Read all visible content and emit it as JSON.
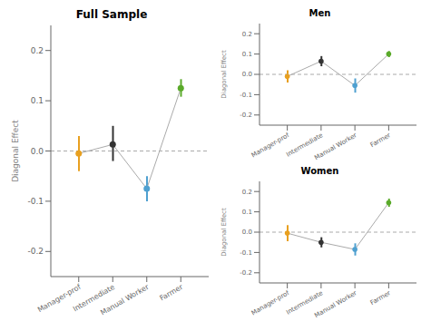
{
  "chart_data": [
    {
      "type": "line",
      "title": "Full Sample",
      "categories": [
        "Manager-prof",
        "Intermediate",
        "Manual Worker",
        "Farmer"
      ],
      "values": [
        -0.005,
        0.013,
        -0.075,
        0.125
      ],
      "ci_low": [
        -0.04,
        -0.02,
        -0.1,
        0.108
      ],
      "ci_high": [
        0.03,
        0.05,
        -0.05,
        0.143
      ],
      "colors": [
        "#E8A020",
        "#333333",
        "#4FA0D0",
        "#5AAA2A"
      ],
      "color": "#aaaaaa",
      "marker": "circle",
      "ylabel": "Diagonal Effect",
      "ylim": [
        -0.25,
        0.25
      ],
      "yticks": [
        -0.2,
        -0.1,
        {
          "value": 0,
          "label": "0.0"
        },
        0.1,
        0.2
      ],
      "hline": {
        "value": 0,
        "color": "#aaaaaa",
        "line_style": "dashed"
      }
    },
    {
      "type": "line",
      "title": "Men",
      "categories": [
        "Manager-prof",
        "Intermediate",
        "Manual Worker",
        "Farmer"
      ],
      "values": [
        -0.01,
        0.065,
        -0.055,
        0.1
      ],
      "ci_low": [
        -0.04,
        0.04,
        -0.09,
        0.085
      ],
      "ci_high": [
        0.02,
        0.09,
        -0.02,
        0.115
      ],
      "colors": [
        "#E8A020",
        "#333333",
        "#4FA0D0",
        "#5AAA2A"
      ],
      "color": "#aaaaaa",
      "marker": "circle",
      "ylabel": "Diagonal Effect",
      "ylim": [
        -0.25,
        0.25
      ],
      "yticks": [
        -0.2,
        -0.1,
        {
          "value": 0,
          "label": "0.0"
        },
        0.1,
        0.2
      ],
      "hline": {
        "value": 0,
        "color": "#aaaaaa",
        "line_style": "dashed"
      }
    },
    {
      "type": "line",
      "title": "Women",
      "categories": [
        "Manager-prof",
        "Intermediate",
        "Manual Worker",
        "Farmer"
      ],
      "values": [
        -0.005,
        -0.05,
        -0.085,
        0.145
      ],
      "ci_low": [
        -0.045,
        -0.075,
        -0.115,
        0.125
      ],
      "ci_high": [
        0.035,
        -0.025,
        -0.055,
        0.165
      ],
      "colors": [
        "#E8A020",
        "#333333",
        "#4FA0D0",
        "#5AAA2A"
      ],
      "color": "#aaaaaa",
      "marker": "circle",
      "ylabel": "Diagonal Effect",
      "ylim": [
        -0.25,
        0.25
      ],
      "yticks": [
        -0.2,
        -0.1,
        {
          "value": 0,
          "label": "0.0"
        },
        0.1,
        0.2
      ],
      "hline": {
        "value": 0,
        "color": "#aaaaaa",
        "line_style": "dashed"
      }
    }
  ]
}
